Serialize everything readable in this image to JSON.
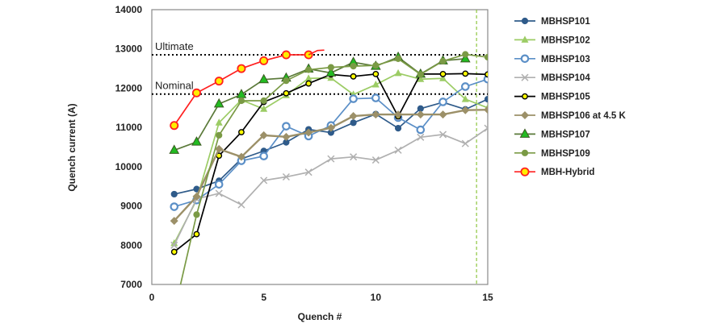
{
  "chart_data": {
    "type": "line",
    "xlabel": "Quench #",
    "ylabel": "Quench current (A)",
    "xlim": [
      0,
      15
    ],
    "ylim": [
      7000,
      14000
    ],
    "xticks": [
      0,
      5,
      10,
      15
    ],
    "yticks": [
      7000,
      8000,
      9000,
      10000,
      11000,
      12000,
      13000,
      14000
    ],
    "grid": false,
    "legend": "right",
    "reference_lines": [
      {
        "label": "Ultimate",
        "y": 12850,
        "style": "dotted",
        "color": "#000000"
      },
      {
        "label": "Nominal",
        "y": 11850,
        "style": "dotted",
        "color": "#000000"
      }
    ],
    "vertical_marker": {
      "x": 14.5,
      "style": "dashed",
      "color": "#8dc63f"
    },
    "series": [
      {
        "name": "MBHSP101",
        "color": "#2f5b8a",
        "marker": "dot",
        "fill": "#2f5b8a",
        "x": [
          1,
          2,
          3,
          4,
          5,
          6,
          7,
          8,
          9,
          10,
          11,
          12,
          13,
          14,
          15
        ],
        "y": [
          9300,
          9430,
          9640,
          10200,
          10400,
          10620,
          10950,
          10870,
          11120,
          11340,
          10980,
          11480,
          11640,
          11460,
          11720
        ]
      },
      {
        "name": "MBHSP102",
        "color": "#9ccc65",
        "marker": "triangle",
        "fill": "#9ccc65",
        "x": [
          1,
          2,
          3,
          4,
          5,
          6,
          7,
          8,
          9,
          10,
          11,
          12,
          13,
          14,
          15
        ],
        "y": [
          8050,
          9150,
          11120,
          11700,
          11470,
          11820,
          12250,
          12260,
          11840,
          12090,
          12380,
          12230,
          12250,
          11720,
          11500
        ]
      },
      {
        "name": "MBHSP103",
        "color": "#5b8fc7",
        "marker": "ring",
        "fill": "#ffffff",
        "x": [
          1,
          2,
          3,
          4,
          5,
          6,
          7,
          8,
          9,
          10,
          11,
          12,
          13,
          14,
          15
        ],
        "y": [
          8980,
          9150,
          9550,
          10150,
          10270,
          11030,
          10780,
          11050,
          11730,
          11750,
          11250,
          10940,
          11650,
          12040,
          12230
        ]
      },
      {
        "name": "MBHSP104",
        "color": "#b0b0b0",
        "marker": "x",
        "fill": "none",
        "x": [
          1,
          2,
          3,
          4,
          5,
          6,
          7,
          8,
          9,
          10,
          11,
          12,
          13,
          14,
          15
        ],
        "y": [
          8000,
          9180,
          9320,
          9030,
          9650,
          9740,
          9860,
          10200,
          10250,
          10170,
          10420,
          10750,
          10820,
          10590,
          10980
        ]
      },
      {
        "name": "MBHSP105",
        "color": "#000000",
        "marker": "yellowdot",
        "fill": "#ffff00",
        "x": [
          1,
          2,
          3,
          4,
          5,
          6,
          7,
          8,
          9,
          10,
          11,
          12,
          13,
          14,
          15
        ],
        "y": [
          7830,
          8280,
          10280,
          10880,
          11650,
          11870,
          12120,
          12350,
          12300,
          12360,
          11280,
          12360,
          12360,
          12370,
          12350
        ]
      },
      {
        "name": "MBHSP106 at 4.5 K",
        "color": "#9c9068",
        "marker": "diamond",
        "fill": "#9c9068",
        "x": [
          1,
          2,
          3,
          4,
          5,
          6,
          7,
          8,
          9,
          10,
          11,
          12,
          13,
          14,
          15
        ],
        "y": [
          8620,
          9240,
          10450,
          10250,
          10800,
          10760,
          10870,
          10990,
          11290,
          11330,
          11330,
          11330,
          11330,
          11440,
          11450
        ]
      },
      {
        "name": "MBHSP107",
        "color": "#5b7a3a",
        "marker": "greentriangle",
        "fill": "#22bb22",
        "x": [
          1,
          2,
          3,
          4,
          5,
          6,
          7,
          8,
          9,
          10,
          11,
          12,
          13,
          14
        ],
        "y": [
          10420,
          10630,
          11600,
          11840,
          12220,
          12260,
          12490,
          12390,
          12660,
          12560,
          12790,
          12360,
          12700,
          12750
        ]
      },
      {
        "name": "MBHSP109",
        "color": "#7a9a45",
        "marker": "dot",
        "fill": "#7a9a45",
        "x": [
          1,
          2,
          3,
          4,
          5,
          6,
          7,
          8,
          9,
          10,
          11,
          12,
          13,
          14,
          15
        ],
        "y": [
          6300,
          8780,
          10800,
          11680,
          11680,
          12190,
          12470,
          12530,
          12560,
          12580,
          12750,
          12350,
          12690,
          12860,
          12790
        ]
      },
      {
        "name": "MBH-Hybrid",
        "color": "#ff2020",
        "marker": "yellowring",
        "fill": "#ffee00",
        "x": [
          1,
          2,
          3,
          4,
          5,
          6,
          7
        ],
        "y": [
          11050,
          11880,
          12180,
          12500,
          12700,
          12850,
          12850
        ]
      }
    ]
  }
}
